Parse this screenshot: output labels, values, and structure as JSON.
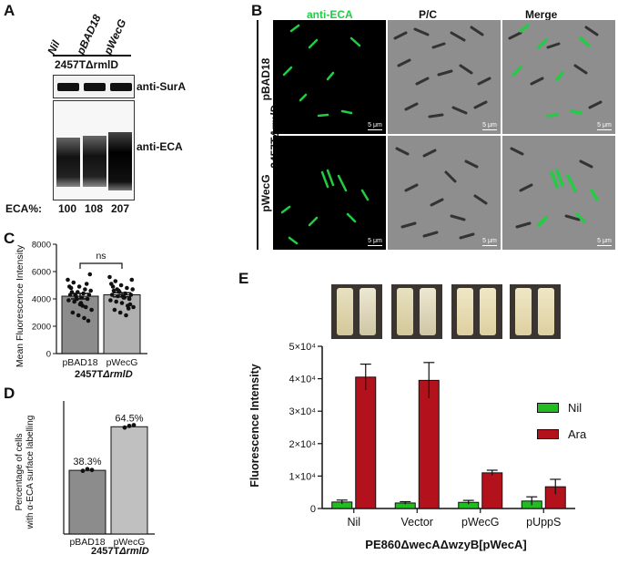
{
  "panels": {
    "a": "A",
    "b": "B",
    "c": "C",
    "d": "D",
    "e": "E"
  },
  "panel_a": {
    "lanes": [
      "Nil",
      "pBAD18",
      "pWecG"
    ],
    "strain": "2457TΔrmlD",
    "blot1_label": "anti-SurA",
    "blot2_label": "anti-ECA",
    "eca_label": "ECA%:",
    "eca_values": [
      "100",
      "108",
      "207"
    ]
  },
  "panel_b": {
    "col_headers": [
      "anti-ECA",
      "P/C",
      "Merge"
    ],
    "row_labels": [
      "pBAD18",
      "pWecG"
    ],
    "strain_prefix": "2457T",
    "strain_suffix": "ΔrmlD",
    "scale": "5 μm",
    "colors": {
      "green": "#22cc44",
      "phase": "#8e8e8e"
    }
  },
  "chart_data": [
    {
      "type": "bar",
      "title": "",
      "ylabel": "Mean Fluorescence Intensity",
      "xlabel_prefix": "2457T",
      "xlabel_suffix": "ΔrmlD",
      "categories": [
        "pBAD18",
        "pWecG"
      ],
      "values": [
        4200,
        4300
      ],
      "errors": [
        200,
        150
      ],
      "ylim": [
        0,
        8000
      ],
      "yticks": [
        "0",
        "2000",
        "4000",
        "6000",
        "8000"
      ],
      "annotation": "ns",
      "points": [
        [
          5400,
          5200,
          4900,
          4700,
          4600,
          4500,
          4500,
          4400,
          4300,
          4300,
          4200,
          4100,
          4000,
          3900,
          3800,
          3600,
          3400,
          3200,
          3000,
          2800,
          2600,
          5800,
          4800,
          4000,
          3500,
          2400,
          4900,
          4300,
          3700,
          5100
        ],
        [
          5600,
          5300,
          5000,
          4800,
          4700,
          4600,
          4500,
          4400,
          4300,
          4300,
          4200,
          4100,
          4000,
          3900,
          3800,
          3700,
          3500,
          3400,
          3200,
          3000,
          2800,
          5400,
          4900,
          4600,
          4100,
          3600,
          5100,
          4700,
          4200,
          3300
        ]
      ],
      "bar_color": "#8c8c8c"
    },
    {
      "type": "bar",
      "title": "",
      "ylabel_lines": [
        "Percentage of cells",
        "with α-ECA surface labelling"
      ],
      "xlabel_prefix": "2457T",
      "xlabel_suffix": "ΔrmlD",
      "categories": [
        "pBAD18",
        "pWecG"
      ],
      "values": [
        38.3,
        64.5
      ],
      "value_labels": [
        "38.3%",
        "64.5%"
      ],
      "ylim": [
        0,
        80
      ],
      "points": [
        [
          38,
          39,
          38.5
        ],
        [
          64,
          65,
          65.5
        ]
      ],
      "bar_colors": [
        "#8c8c8c",
        "#c0c0c0"
      ]
    },
    {
      "type": "bar",
      "ylabel": "Fluorescence Intensity",
      "xlabel": "PE860ΔwecAΔwzyB[pWecA]",
      "categories": [
        "Nil",
        "Vector",
        "pWecG",
        "pUppS"
      ],
      "series": [
        {
          "name": "Nil",
          "values": [
            2000,
            1700,
            1900,
            2300
          ],
          "errors": [
            600,
            400,
            600,
            1300
          ],
          "color": "#22bb22"
        },
        {
          "name": "Ara",
          "values": [
            40500,
            39500,
            11000,
            6700
          ],
          "errors": [
            4000,
            5500,
            800,
            2300
          ],
          "color": "#b3121c"
        }
      ],
      "ylim": [
        0,
        50000
      ],
      "yticks": [
        "0",
        "1×10⁴",
        "2×10⁴",
        "3×10⁴",
        "4×10⁴",
        "5×10⁴"
      ],
      "legend_placement": "right"
    }
  ]
}
